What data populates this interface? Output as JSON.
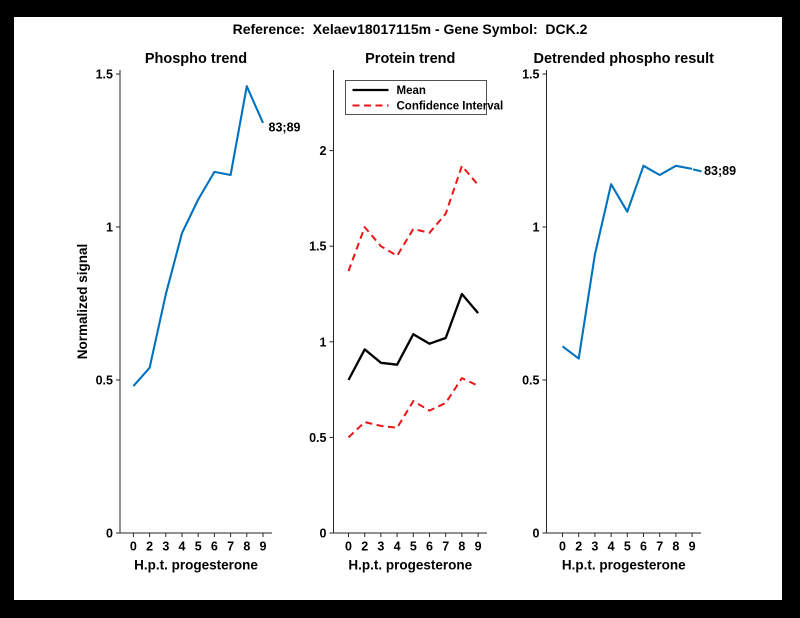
{
  "figure": {
    "title": "Reference:  Xelaev18017115m - Gene Symbol:  DCK.2"
  },
  "colors": {
    "background": "#000000",
    "canvas": "#FFFFFF",
    "axis": "#262626",
    "line_blue": "#0072BD",
    "mean_black": "#000000",
    "ci_red": "#ED1515"
  },
  "chart_data": [
    {
      "type": "line",
      "title": "Phospho trend",
      "xlabel": "H.p.t. progesterone",
      "ylabel": "Normalized signal",
      "categories": [
        "0",
        "2",
        "3",
        "4",
        "5",
        "6",
        "7",
        "8",
        "9"
      ],
      "values": [
        0.48,
        0.54,
        0.78,
        0.98,
        1.09,
        1.18,
        1.17,
        1.46,
        1.34
      ],
      "line_color": "#0072BD",
      "ylim": [
        0,
        1.5
      ],
      "yticks": [
        0,
        0.5,
        1,
        1.5
      ],
      "ytick_labels": [
        "0",
        "0.5",
        "1",
        "1.5"
      ],
      "grid": false,
      "annotation": "83;89"
    },
    {
      "type": "line",
      "title": "Protein trend",
      "xlabel": "H.p.t. progesterone",
      "ylabel": "",
      "categories": [
        "0",
        "2",
        "3",
        "4",
        "5",
        "6",
        "7",
        "8",
        "9"
      ],
      "series": [
        {
          "name": "Mean",
          "values": [
            0.8,
            0.96,
            0.89,
            0.88,
            1.04,
            0.99,
            1.02,
            1.25,
            1.15
          ],
          "color": "#000000",
          "style": "solid"
        },
        {
          "name": "Confidence Interval",
          "values": [
            1.37,
            1.6,
            1.5,
            1.45,
            1.59,
            1.57,
            1.67,
            1.92,
            1.82
          ],
          "color": "#ED1515",
          "style": "dashed"
        },
        {
          "name": "Confidence Interval",
          "values": [
            0.5,
            0.58,
            0.56,
            0.55,
            0.69,
            0.64,
            0.68,
            0.81,
            0.77
          ],
          "color": "#ED1515",
          "style": "dashed"
        }
      ],
      "legend": {
        "position": "top-left",
        "entries": [
          "Mean",
          "Confidence Interval"
        ]
      },
      "ylim": [
        0,
        2.42
      ],
      "yticks": [
        0,
        0.5,
        1,
        1.5,
        2
      ],
      "ytick_labels": [
        "0",
        "0.5",
        "1",
        "1.5",
        "2"
      ],
      "grid": false
    },
    {
      "type": "line",
      "title": "Detrended phospho result",
      "xlabel": "H.p.t. progesterone",
      "ylabel": "",
      "categories": [
        "0",
        "2",
        "3",
        "4",
        "5",
        "6",
        "7",
        "8",
        "9"
      ],
      "values": [
        0.61,
        0.57,
        0.91,
        1.14,
        1.05,
        1.2,
        1.17,
        1.2,
        1.19
      ],
      "line_color": "#0072BD",
      "ylim": [
        0,
        1.5
      ],
      "yticks": [
        0,
        0.5,
        1,
        1.5
      ],
      "ytick_labels": [
        "0",
        "0.5",
        "1",
        "1.5"
      ],
      "grid": false,
      "annotation": "83;89"
    }
  ]
}
